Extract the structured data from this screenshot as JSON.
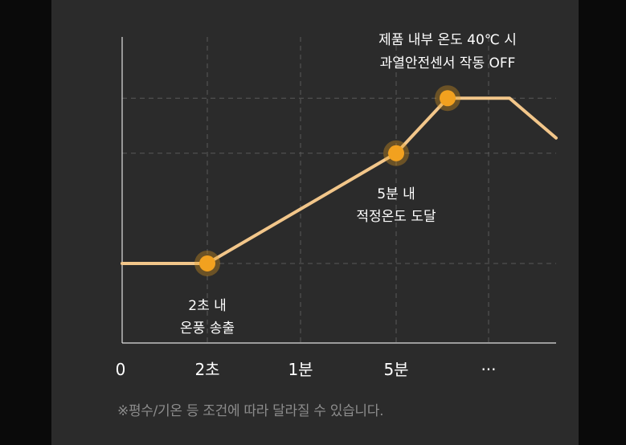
{
  "colors": {
    "line": "#f2c68a",
    "marker_glow": "#e29a1c",
    "marker_core": "#f2a11f",
    "grid": "#5a5a5a",
    "axis": "#e0e0e0",
    "text": "#ffffff",
    "note": "#8c8c8c",
    "panel": "#2b2b2b"
  },
  "chart_data": {
    "type": "line",
    "title": "",
    "xlabel": "",
    "ylabel": "",
    "x_ticks": [
      "0",
      "2초",
      "1분",
      "5분",
      "···"
    ],
    "series": [
      {
        "x": [
          "0",
          "2초",
          "5분",
          "peak_start",
          "peak_end",
          "end"
        ],
        "y": [
          0.26,
          0.26,
          0.62,
          0.8,
          0.8,
          0.67
        ]
      }
    ],
    "grid": true,
    "annotations": [
      {
        "lines": [
          "2초 내",
          "온풍 송출"
        ],
        "at": "2초"
      },
      {
        "lines": [
          "5분 내",
          "적정온도 도달"
        ],
        "at": "5분"
      },
      {
        "lines": [
          "제품 내부 온도 40℃ 시",
          "과열안전센서 작동 OFF"
        ],
        "at": "peak_start"
      }
    ]
  },
  "footnote": "※평수/기온 등 조건에 따라 달라질 수 있습니다."
}
